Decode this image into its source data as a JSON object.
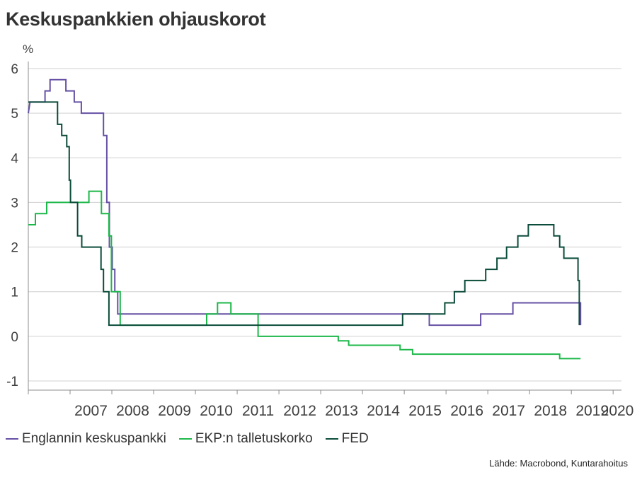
{
  "title": "Keskuspankkien ohjauskorot",
  "source": "Lähde: Macrobond, Kuntarahoitus",
  "chart_data": {
    "type": "line",
    "ylabel": "%",
    "xlim": [
      2006.0,
      2020.2
    ],
    "ylim": [
      -1,
      6
    ],
    "yticks": [
      -1,
      0,
      1,
      2,
      3,
      4,
      5,
      6
    ],
    "grid": true,
    "legend_position": "bottom-left",
    "x_tick_labels": [
      "2007",
      "2008",
      "2009",
      "2010",
      "2011",
      "2012",
      "2013",
      "2014",
      "2015",
      "2016",
      "2017",
      "2018",
      "2019",
      "2020"
    ],
    "series": [
      {
        "name": "Englannin keskuspankki",
        "color": "#6650A4",
        "points": [
          [
            2006.0,
            5.0
          ],
          [
            2006.04,
            5.25
          ],
          [
            2006.4,
            5.25
          ],
          [
            2006.4,
            5.5
          ],
          [
            2006.52,
            5.5
          ],
          [
            2006.52,
            5.75
          ],
          [
            2006.9,
            5.75
          ],
          [
            2006.9,
            5.5
          ],
          [
            2007.1,
            5.5
          ],
          [
            2007.1,
            5.25
          ],
          [
            2007.27,
            5.25
          ],
          [
            2007.27,
            5.0
          ],
          [
            2007.8,
            5.0
          ],
          [
            2007.8,
            4.5
          ],
          [
            2007.88,
            4.5
          ],
          [
            2007.88,
            3.0
          ],
          [
            2007.94,
            3.0
          ],
          [
            2007.94,
            2.0
          ],
          [
            2008.01,
            2.0
          ],
          [
            2008.01,
            1.5
          ],
          [
            2008.07,
            1.5
          ],
          [
            2008.07,
            1.0
          ],
          [
            2008.14,
            1.0
          ],
          [
            2008.14,
            0.5
          ],
          [
            2015.6,
            0.5
          ],
          [
            2015.6,
            0.25
          ],
          [
            2016.83,
            0.25
          ],
          [
            2016.83,
            0.5
          ],
          [
            2017.6,
            0.5
          ],
          [
            2017.6,
            0.75
          ],
          [
            2019.22,
            0.75
          ],
          [
            2019.22,
            0.25
          ]
        ]
      },
      {
        "name": "EKP:n talletuskorko",
        "color": "#1DB84A",
        "points": [
          [
            2006.0,
            2.5
          ],
          [
            2006.17,
            2.5
          ],
          [
            2006.17,
            2.75
          ],
          [
            2006.44,
            2.75
          ],
          [
            2006.44,
            3.0
          ],
          [
            2007.45,
            3.0
          ],
          [
            2007.45,
            3.25
          ],
          [
            2007.75,
            3.25
          ],
          [
            2007.75,
            2.75
          ],
          [
            2007.93,
            2.75
          ],
          [
            2007.93,
            2.25
          ],
          [
            2007.99,
            2.25
          ],
          [
            2007.99,
            1.0
          ],
          [
            2008.2,
            1.0
          ],
          [
            2008.2,
            0.25
          ],
          [
            2010.27,
            0.25
          ],
          [
            2010.27,
            0.5
          ],
          [
            2010.53,
            0.5
          ],
          [
            2010.53,
            0.75
          ],
          [
            2010.85,
            0.75
          ],
          [
            2010.85,
            0.5
          ],
          [
            2011.5,
            0.5
          ],
          [
            2011.5,
            0.0
          ],
          [
            2013.42,
            0.0
          ],
          [
            2013.42,
            -0.1
          ],
          [
            2013.67,
            -0.1
          ],
          [
            2013.67,
            -0.2
          ],
          [
            2014.9,
            -0.2
          ],
          [
            2014.9,
            -0.3
          ],
          [
            2015.2,
            -0.3
          ],
          [
            2015.2,
            -0.4
          ],
          [
            2018.72,
            -0.4
          ],
          [
            2018.72,
            -0.5
          ],
          [
            2019.22,
            -0.5
          ]
        ]
      },
      {
        "name": "FED",
        "color": "#0B4C3A",
        "points": [
          [
            2006.0,
            5.25
          ],
          [
            2006.7,
            5.25
          ],
          [
            2006.7,
            4.75
          ],
          [
            2006.8,
            4.75
          ],
          [
            2006.8,
            4.5
          ],
          [
            2006.92,
            4.5
          ],
          [
            2006.92,
            4.25
          ],
          [
            2006.98,
            4.25
          ],
          [
            2006.98,
            3.5
          ],
          [
            2007.01,
            3.5
          ],
          [
            2007.01,
            3.0
          ],
          [
            2007.18,
            3.0
          ],
          [
            2007.18,
            2.25
          ],
          [
            2007.28,
            2.25
          ],
          [
            2007.28,
            2.0
          ],
          [
            2007.74,
            2.0
          ],
          [
            2007.74,
            1.5
          ],
          [
            2007.8,
            1.5
          ],
          [
            2007.8,
            1.0
          ],
          [
            2007.93,
            1.0
          ],
          [
            2007.93,
            0.25
          ],
          [
            2014.96,
            0.25
          ],
          [
            2014.96,
            0.5
          ],
          [
            2015.97,
            0.5
          ],
          [
            2015.97,
            0.75
          ],
          [
            2016.2,
            0.75
          ],
          [
            2016.2,
            1.0
          ],
          [
            2016.45,
            1.0
          ],
          [
            2016.45,
            1.25
          ],
          [
            2016.95,
            1.25
          ],
          [
            2016.95,
            1.5
          ],
          [
            2017.22,
            1.5
          ],
          [
            2017.22,
            1.75
          ],
          [
            2017.45,
            1.75
          ],
          [
            2017.45,
            2.0
          ],
          [
            2017.72,
            2.0
          ],
          [
            2017.72,
            2.25
          ],
          [
            2017.97,
            2.25
          ],
          [
            2017.97,
            2.5
          ],
          [
            2018.58,
            2.5
          ],
          [
            2018.58,
            2.25
          ],
          [
            2018.72,
            2.25
          ],
          [
            2018.72,
            2.0
          ],
          [
            2018.82,
            2.0
          ],
          [
            2018.82,
            1.75
          ],
          [
            2019.16,
            1.75
          ],
          [
            2019.16,
            1.25
          ],
          [
            2019.19,
            1.25
          ],
          [
            2019.19,
            0.25
          ]
        ]
      }
    ]
  }
}
